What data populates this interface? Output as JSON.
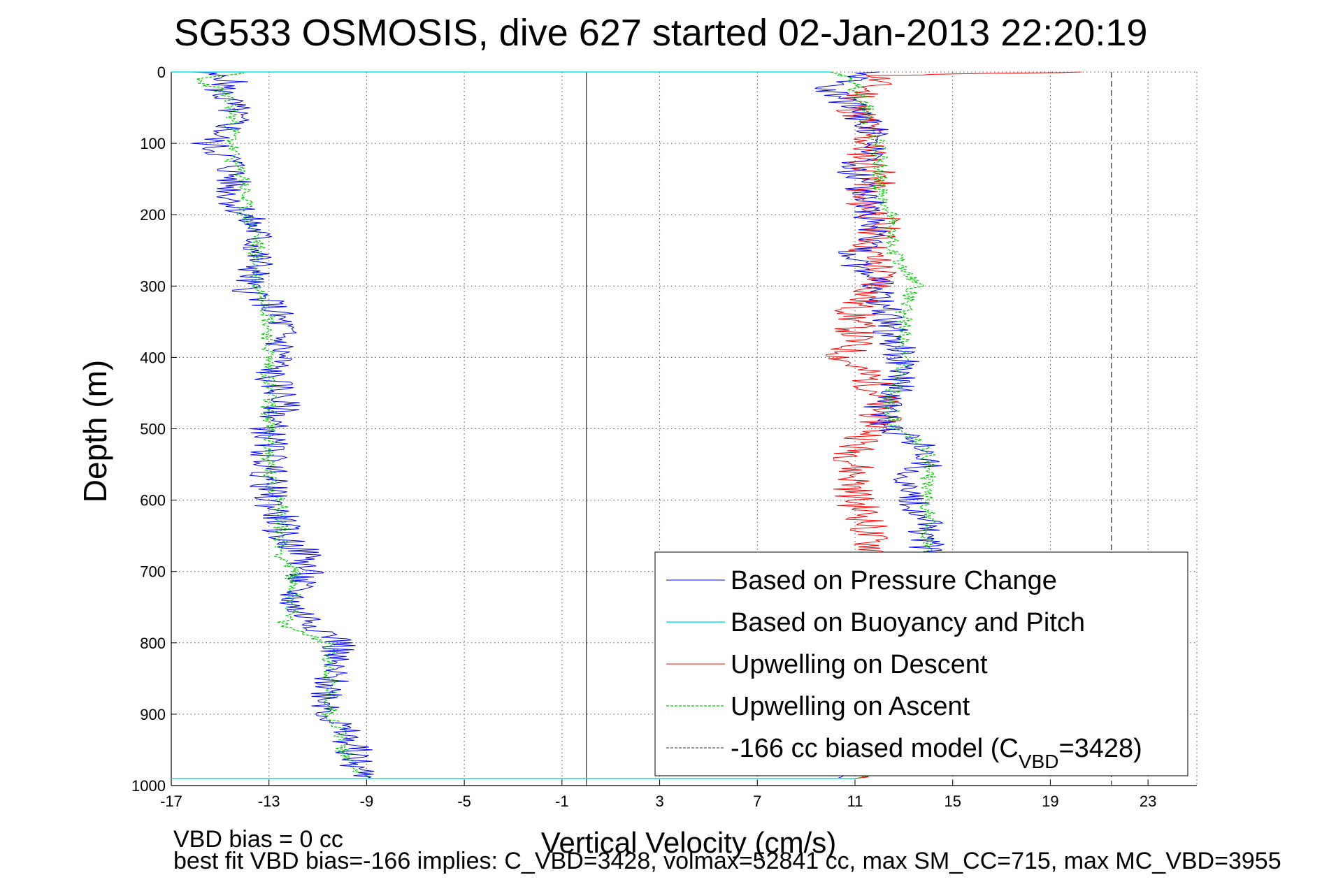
{
  "chart_data": {
    "type": "line",
    "title": "SG533 OSMOSIS, dive 627 started 02-Jan-2013 22:20:19",
    "xlabel": "Vertical Velocity (cm/s)",
    "ylabel": "Depth (m)",
    "xlim": [
      -17,
      25
    ],
    "ylim": [
      1000,
      0
    ],
    "x_ticks": [
      -17,
      -13,
      -9,
      -5,
      -1,
      3,
      7,
      11,
      15,
      19,
      23
    ],
    "y_ticks": [
      0,
      100,
      200,
      300,
      400,
      500,
      600,
      700,
      800,
      900,
      1000
    ],
    "grid": true,
    "legend_position": "bottom-right",
    "zero_line_x": 0,
    "series": [
      {
        "name": "Based on Pressure Change",
        "color": "#0000ff",
        "style": "solid",
        "note": "descent branch (negative) and ascent branch (positive)",
        "descent": {
          "depth": [
            0,
            10,
            25,
            50,
            75,
            100,
            125,
            150,
            175,
            200,
            225,
            250,
            275,
            300,
            325,
            350,
            375,
            400,
            425,
            450,
            475,
            500,
            525,
            550,
            575,
            600,
            625,
            650,
            675,
            700,
            725,
            750,
            775,
            800,
            825,
            850,
            875,
            900,
            925,
            950,
            970,
            990
          ],
          "velocity": [
            -16.0,
            -14.5,
            -15.0,
            -14.5,
            -14.5,
            -15.5,
            -14.5,
            -14.5,
            -14.5,
            -14.0,
            -13.5,
            -13.5,
            -13.5,
            -14.0,
            -13.0,
            -12.5,
            -12.5,
            -12.5,
            -13.0,
            -12.5,
            -12.5,
            -13.0,
            -13.0,
            -13.0,
            -13.0,
            -13.0,
            -12.5,
            -12.5,
            -11.5,
            -11.5,
            -12.0,
            -12.0,
            -11.0,
            -10.0,
            -10.5,
            -10.5,
            -10.5,
            -10.5,
            -10.0,
            -9.5,
            -9.5,
            -9.0
          ]
        },
        "ascent": {
          "depth": [
            990,
            950,
            900,
            850,
            800,
            750,
            700,
            650,
            600,
            575,
            550,
            525,
            500,
            475,
            450,
            425,
            400,
            375,
            350,
            325,
            300,
            275,
            250,
            225,
            200,
            175,
            150,
            125,
            100,
            75,
            50,
            25,
            10,
            0
          ],
          "velocity": [
            11.0,
            14.0,
            14.0,
            14.0,
            14.0,
            14.0,
            14.0,
            14.0,
            13.5,
            13.0,
            14.0,
            14.0,
            12.5,
            12.0,
            12.5,
            13.0,
            13.0,
            12.5,
            12.5,
            12.0,
            12.0,
            11.0,
            11.0,
            12.0,
            11.5,
            11.5,
            11.0,
            11.0,
            12.0,
            11.5,
            11.0,
            10.0,
            11.0,
            12.0
          ]
        }
      },
      {
        "name": "Based on Buoyancy and Pitch",
        "color": "#00e5e5",
        "style": "solid",
        "note": "drawn only as near-horizontal segments at surface and bottom turn",
        "segments": [
          {
            "depth": 0,
            "x_from": -17,
            "x_to": 10
          },
          {
            "depth": 990,
            "x_from": -17,
            "x_to": 11
          }
        ]
      },
      {
        "name": "Upwelling on Descent",
        "color": "#ff0000",
        "style": "solid",
        "depth": [
          0,
          5,
          25,
          50,
          75,
          100,
          125,
          150,
          175,
          200,
          225,
          250,
          275,
          300,
          325,
          350,
          375,
          400,
          425,
          450,
          475,
          500,
          525,
          550,
          575,
          600,
          625,
          650,
          675,
          990
        ],
        "velocity": [
          20.0,
          12.0,
          11.5,
          11.0,
          11.5,
          11.5,
          11.5,
          12.0,
          11.0,
          12.0,
          12.0,
          11.5,
          12.0,
          12.0,
          11.0,
          11.0,
          11.0,
          10.5,
          11.5,
          12.0,
          12.0,
          12.0,
          11.0,
          11.0,
          11.0,
          11.0,
          11.5,
          11.5,
          12.0,
          11.0
        ]
      },
      {
        "name": "Upwelling on Ascent",
        "color": "#00cc00",
        "style": "dashed",
        "descent": {
          "depth": [
            0,
            10,
            25,
            50,
            75,
            100,
            125,
            150,
            175,
            200,
            225,
            250,
            275,
            300,
            325,
            350,
            375,
            400,
            425,
            450,
            475,
            500,
            525,
            550,
            575,
            600,
            625,
            650,
            675,
            700,
            725,
            750,
            775,
            800,
            825,
            850,
            875,
            900,
            925,
            950,
            970,
            990
          ],
          "velocity": [
            -14.0,
            -16.0,
            -15.0,
            -14.5,
            -14.5,
            -14.5,
            -14.5,
            -14.0,
            -14.0,
            -14.0,
            -13.5,
            -13.5,
            -13.5,
            -13.5,
            -13.0,
            -13.0,
            -13.0,
            -13.0,
            -13.0,
            -13.0,
            -13.0,
            -13.0,
            -13.0,
            -13.0,
            -13.0,
            -12.5,
            -12.5,
            -12.5,
            -12.5,
            -12.0,
            -12.0,
            -12.0,
            -12.5,
            -10.5,
            -10.5,
            -10.5,
            -10.5,
            -10.5,
            -10.0,
            -10.0,
            -9.5,
            -9.0
          ]
        },
        "ascent": {
          "depth": [
            990,
            950,
            900,
            850,
            800,
            750,
            700,
            650,
            600,
            575,
            550,
            525,
            500,
            475,
            450,
            425,
            400,
            375,
            350,
            325,
            300,
            275,
            250,
            225,
            200,
            175,
            150,
            125,
            100,
            75,
            50,
            25,
            10,
            0
          ],
          "velocity": [
            11.0,
            14.0,
            14.0,
            14.0,
            14.0,
            14.0,
            14.0,
            14.0,
            14.0,
            14.0,
            14.0,
            14.0,
            12.5,
            12.5,
            12.5,
            13.0,
            13.0,
            13.0,
            13.0,
            13.0,
            13.5,
            13.0,
            12.5,
            12.5,
            12.5,
            12.0,
            12.0,
            12.0,
            12.0,
            11.5,
            11.5,
            11.0,
            11.0,
            10.0
          ]
        }
      },
      {
        "name": "-166 cc biased model (C",
        "name_sub": "VBD",
        "name_tail": "=3428)",
        "color": "#555555",
        "style": "dashed",
        "x_constant": 21.5
      }
    ]
  },
  "footer": {
    "line1": "VBD bias = 0 cc",
    "line2": "best fit VBD bias=-166 implies: C_VBD=3428, volmax=52841 cc, max SM_CC=715, max MC_VBD=3955"
  }
}
